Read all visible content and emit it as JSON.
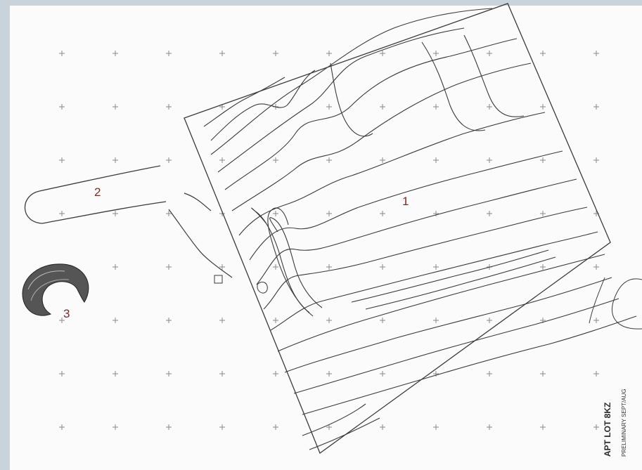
{
  "map": {
    "labels": {
      "area_1": "1",
      "area_2": "2",
      "area_3": "3"
    },
    "title_block": {
      "line_1": "APT LOT 8KZ",
      "line_2": "PRELIMINARY  SEPT/AUG"
    },
    "colors": {
      "background": "#c9d3db",
      "paper": "#fbfbfb",
      "ink": "#3a3a3a",
      "label": "#7a2a2a"
    }
  }
}
